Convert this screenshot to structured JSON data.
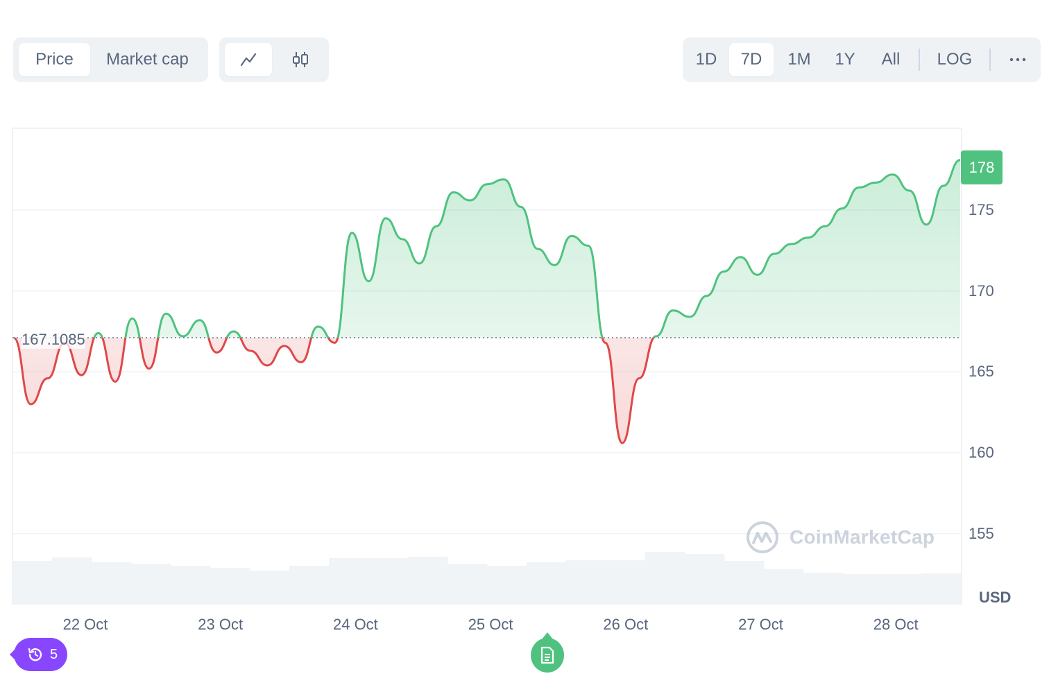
{
  "toolbar": {
    "metric_tabs": [
      "Price",
      "Market cap"
    ],
    "active_metric": "Price",
    "chart_kind_buttons": [
      "line-chart-icon",
      "candlestick-icon"
    ],
    "active_chart_kind": "line-chart-icon",
    "ranges": [
      "1D",
      "7D",
      "1M",
      "1Y",
      "All"
    ],
    "active_range": "7D",
    "log_label": "LOG",
    "more_icon": "more-horizontal-icon"
  },
  "chart_data": {
    "type": "line",
    "ylabel": "USD",
    "ylim": [
      151,
      180
    ],
    "y_ticks": [
      155,
      160,
      165,
      170,
      175
    ],
    "x_tick_labels": [
      "22 Oct",
      "23 Oct",
      "24 Oct",
      "25 Oct",
      "26 Oct",
      "27 Oct",
      "28 Oct"
    ],
    "reference_price": "167.1085",
    "current_price": "178",
    "series": [
      {
        "x": [
          "21 Oct 13:00",
          "21 Oct 16:00",
          "21 Oct 19:00",
          "21 Oct 22:00",
          "22 Oct 01:00",
          "22 Oct 04:00",
          "22 Oct 07:00",
          "22 Oct 10:00",
          "22 Oct 13:00",
          "22 Oct 16:00",
          "22 Oct 19:00",
          "22 Oct 22:00",
          "23 Oct 01:00",
          "23 Oct 04:00",
          "23 Oct 07:00",
          "23 Oct 10:00",
          "23 Oct 13:00",
          "23 Oct 16:00",
          "23 Oct 19:00",
          "23 Oct 22:00",
          "24 Oct 01:00",
          "24 Oct 04:00",
          "24 Oct 07:00",
          "24 Oct 10:00",
          "24 Oct 13:00",
          "24 Oct 16:00",
          "24 Oct 19:00",
          "24 Oct 22:00",
          "25 Oct 01:00",
          "25 Oct 04:00",
          "25 Oct 07:00",
          "25 Oct 10:00",
          "25 Oct 13:00",
          "25 Oct 16:00",
          "25 Oct 19:00",
          "25 Oct 22:00",
          "26 Oct 01:00",
          "26 Oct 04:00",
          "26 Oct 07:00",
          "26 Oct 10:00",
          "26 Oct 13:00",
          "26 Oct 16:00",
          "26 Oct 19:00",
          "26 Oct 22:00",
          "27 Oct 01:00",
          "27 Oct 04:00",
          "27 Oct 07:00",
          "27 Oct 10:00",
          "27 Oct 13:00",
          "27 Oct 16:00",
          "27 Oct 19:00",
          "27 Oct 22:00",
          "28 Oct 01:00",
          "28 Oct 04:00",
          "28 Oct 07:00",
          "28 Oct 10:00",
          "28 Oct 13:00"
        ],
        "values": [
          167.1,
          163.0,
          164.6,
          166.8,
          164.8,
          167.4,
          164.4,
          168.3,
          165.2,
          168.6,
          167.2,
          168.2,
          166.2,
          167.5,
          166.3,
          165.4,
          166.6,
          165.6,
          167.8,
          166.8,
          173.6,
          170.6,
          174.5,
          173.2,
          171.7,
          174.0,
          176.1,
          175.6,
          176.6,
          176.9,
          175.2,
          172.6,
          171.6,
          173.4,
          172.8,
          166.8,
          160.6,
          164.6,
          167.2,
          168.8,
          168.4,
          169.7,
          171.2,
          172.1,
          171.0,
          172.3,
          172.9,
          173.3,
          174.0,
          175.1,
          176.4,
          176.7,
          177.2,
          176.2,
          174.1,
          176.5,
          178.1
        ]
      }
    ],
    "volume_relative": [
      0.62,
      0.67,
      0.6,
      0.58,
      0.55,
      0.52,
      0.48,
      0.55,
      0.66,
      0.66,
      0.68,
      0.58,
      0.55,
      0.6,
      0.63,
      0.63,
      0.75,
      0.72,
      0.62,
      0.5,
      0.45,
      0.43,
      0.43,
      0.44
    ]
  },
  "watermark": "CoinMarketCap",
  "history_badge": {
    "icon": "history-icon",
    "count": "5"
  },
  "notes_button_icon": "document-icon"
}
